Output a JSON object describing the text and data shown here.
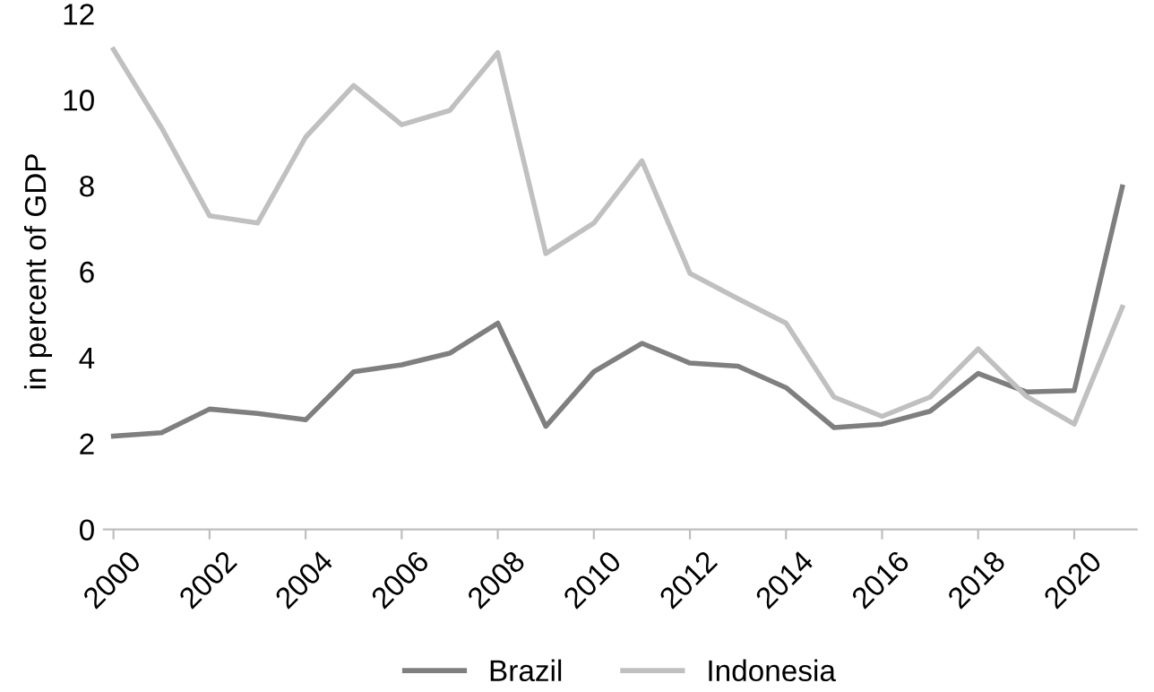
{
  "chart_data": {
    "type": "line",
    "ylabel": "in percent of GDP",
    "x": [
      2000,
      2001,
      2002,
      2003,
      2004,
      2005,
      2006,
      2007,
      2008,
      2009,
      2010,
      2011,
      2012,
      2013,
      2014,
      2015,
      2016,
      2017,
      2018,
      2019,
      2020,
      2021
    ],
    "series": [
      {
        "name": "Brazil",
        "color": "#7f7f7f",
        "values": [
          2.17,
          2.25,
          2.8,
          2.7,
          2.55,
          3.67,
          3.83,
          4.1,
          4.8,
          2.4,
          3.67,
          4.33,
          3.87,
          3.8,
          3.3,
          2.37,
          2.45,
          2.75,
          3.63,
          3.2,
          3.23,
          7.97
        ]
      },
      {
        "name": "Indonesia",
        "color": "#c0c0c0",
        "values": [
          11.17,
          9.35,
          7.3,
          7.13,
          9.13,
          10.33,
          9.42,
          9.75,
          11.1,
          6.42,
          7.13,
          8.58,
          5.96,
          5.37,
          4.8,
          3.08,
          2.63,
          3.08,
          4.2,
          3.1,
          2.45,
          5.17
        ]
      }
    ],
    "xlim": [
      1999.8,
      2021.3
    ],
    "xticks": [
      2000,
      2002,
      2004,
      2006,
      2008,
      2010,
      2012,
      2014,
      2016,
      2018,
      2020
    ],
    "ylim": [
      0,
      12
    ],
    "yticks": [
      0,
      2,
      4,
      6,
      8,
      10,
      12
    ],
    "grid": false,
    "legend": "bottom",
    "marker": "none",
    "line_style": "solid"
  }
}
